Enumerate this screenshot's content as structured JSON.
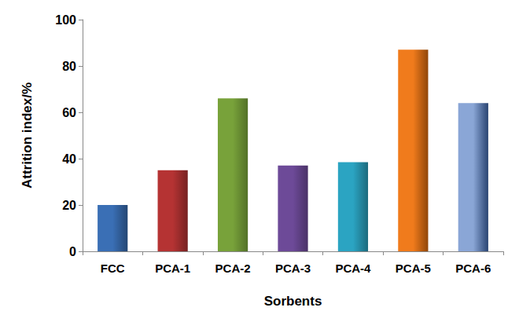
{
  "chart_data": {
    "type": "bar",
    "categories": [
      "FCC",
      "PCA-1",
      "PCA-2",
      "PCA-3",
      "PCA-4",
      "PCA-5",
      "PCA-6"
    ],
    "values": [
      20,
      35,
      66,
      37,
      38.5,
      87,
      64
    ],
    "colors": [
      "#3a6fb5",
      "#b53333",
      "#78a23a",
      "#6d4a98",
      "#2ba4c2",
      "#f07b1c",
      "#8aa6d6"
    ],
    "xlabel": "Sorbents",
    "ylabel": "Attrition index/%",
    "ylim": [
      0,
      100
    ],
    "yticks": [
      0,
      20,
      40,
      60,
      80,
      100
    ],
    "grid": false
  }
}
